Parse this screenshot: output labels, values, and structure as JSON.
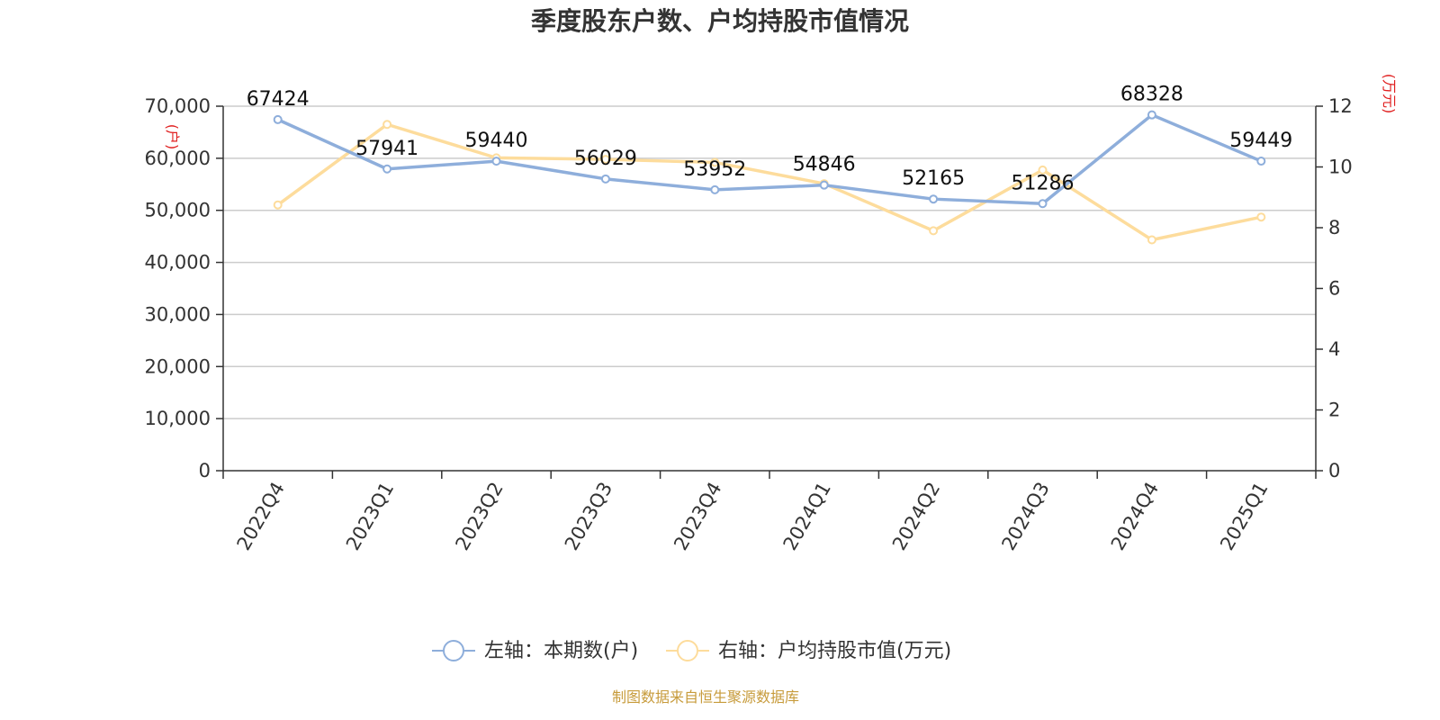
{
  "chart_data": {
    "type": "line",
    "title": "季度股东户数、户均持股市值情况",
    "categories": [
      "2022Q4",
      "2023Q1",
      "2023Q2",
      "2023Q3",
      "2023Q4",
      "2024Q1",
      "2024Q2",
      "2024Q3",
      "2024Q4",
      "2025Q1"
    ],
    "left_axis": {
      "unit": "(户)",
      "range": [
        0,
        70000
      ],
      "ticks": [
        "0",
        "10,000",
        "20,000",
        "30,000",
        "40,000",
        "50,000",
        "60,000",
        "70,000"
      ],
      "tick_values": [
        0,
        10000,
        20000,
        30000,
        40000,
        50000,
        60000,
        70000
      ]
    },
    "right_axis": {
      "unit": "(万元)",
      "range": [
        0,
        12
      ],
      "ticks": [
        "0",
        "2",
        "4",
        "6",
        "8",
        "10",
        "12"
      ],
      "tick_values": [
        0,
        2,
        4,
        6,
        8,
        10,
        12
      ]
    },
    "series": [
      {
        "name": "左轴：本期数(户)",
        "axis": "left",
        "color": "#8eaedb",
        "values": [
          67424,
          57941,
          59440,
          56029,
          53952,
          54846,
          52165,
          51286,
          68328,
          59449
        ],
        "labels": [
          "67424",
          "57941",
          "59440",
          "56029",
          "53952",
          "54846",
          "52165",
          "51286",
          "68328",
          "59449"
        ]
      },
      {
        "name": "右轴：户均持股市值(万元)",
        "axis": "right",
        "color": "#fddc9c",
        "values": [
          8.75,
          11.4,
          10.3,
          10.25,
          10.15,
          9.45,
          7.9,
          9.9,
          7.6,
          8.35
        ]
      }
    ],
    "grid": true,
    "legend_position": "bottom-center"
  },
  "source": "制图数据来自恒生聚源数据库"
}
